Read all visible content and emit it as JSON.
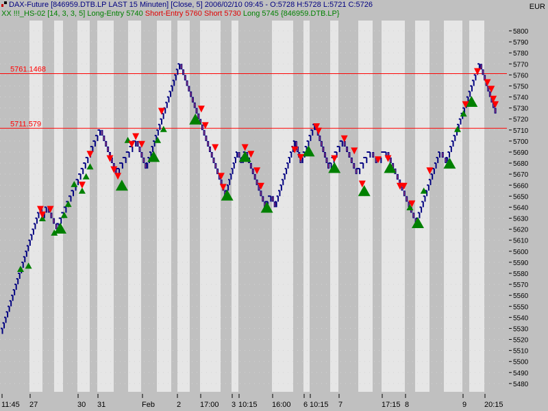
{
  "header": {
    "line1": "DAX-Future [846959.DTB.LP LAST 15 Minuten] [Close, 5] 2006/02/10 09:45 - O:5728 H:5728 L:5721 C:5726",
    "indicator": "XX !!!_HS-02 [14, 3, 3, 5]",
    "long_entry": "Long-Entry 5740",
    "short_entry": "Short-Entry 5760",
    "short": "Short 5730",
    "long": "Long 5745",
    "symbol": "{846959.DTB.LP}",
    "currency": "EUR"
  },
  "chart_data": {
    "type": "line",
    "style": "step (brick size 5)",
    "ylim": [
      5475,
      5805
    ],
    "y_ticks": [
      5480,
      5490,
      5500,
      5510,
      5520,
      5530,
      5540,
      5550,
      5560,
      5570,
      5580,
      5590,
      5600,
      5610,
      5620,
      5630,
      5640,
      5650,
      5660,
      5670,
      5680,
      5690,
      5700,
      5710,
      5720,
      5730,
      5740,
      5750,
      5760,
      5770,
      5780,
      5790,
      5800
    ],
    "x_tick_labels": [
      "11:45",
      "27",
      "30",
      "31",
      "Feb",
      "2",
      "17:00",
      "3",
      "10:15",
      "16:00",
      "6",
      "10:15",
      "7",
      "17:15",
      "8",
      "9",
      "20:15"
    ],
    "hlines": [
      {
        "value": 5761.1468,
        "label": "5761.1468",
        "color": "#ff0000"
      },
      {
        "value": 5711.579,
        "label": "5711.579",
        "color": "#ff0000"
      }
    ],
    "pivots": [
      [
        0,
        5525
      ],
      [
        20,
        5640
      ],
      [
        21,
        5630
      ],
      [
        23,
        5640
      ],
      [
        28,
        5620
      ],
      [
        50,
        5710
      ],
      [
        58,
        5670
      ],
      [
        68,
        5700
      ],
      [
        73,
        5675
      ],
      [
        90,
        5770
      ],
      [
        113,
        5650
      ],
      [
        119,
        5690
      ],
      [
        121,
        5680
      ],
      [
        123,
        5690
      ],
      [
        133,
        5640
      ],
      [
        136,
        5650
      ],
      [
        138,
        5640
      ],
      [
        148,
        5700
      ],
      [
        151,
        5680
      ],
      [
        158,
        5715
      ],
      [
        165,
        5675
      ],
      [
        172,
        5700
      ],
      [
        179,
        5670
      ],
      [
        186,
        5690
      ],
      [
        189,
        5680
      ],
      [
        194,
        5690
      ],
      [
        209,
        5625
      ],
      [
        221,
        5690
      ],
      [
        224,
        5680
      ],
      [
        241,
        5770
      ],
      [
        249,
        5725
      ]
    ],
    "long_signals": [
      [
        30,
        5621,
        "large"
      ],
      [
        61,
        5660,
        "large"
      ],
      [
        77,
        5686,
        "large"
      ],
      [
        98,
        5720,
        "large"
      ],
      [
        114,
        5651,
        "large"
      ],
      [
        123,
        5686,
        "large"
      ],
      [
        134,
        5640,
        "large"
      ],
      [
        155,
        5691,
        "large"
      ],
      [
        168,
        5676,
        "large"
      ],
      [
        183,
        5655,
        "large"
      ],
      [
        196,
        5676,
        "large"
      ],
      [
        210,
        5626,
        "large"
      ],
      [
        226,
        5680,
        "large"
      ],
      [
        237,
        5736,
        "large"
      ],
      [
        10,
        5584,
        "small"
      ],
      [
        14,
        5587,
        "small"
      ],
      [
        21,
        5630,
        "small"
      ],
      [
        27,
        5617,
        "small"
      ],
      [
        32,
        5633,
        "small"
      ],
      [
        34,
        5643,
        "small"
      ],
      [
        37,
        5661,
        "small"
      ],
      [
        41,
        5655,
        "small"
      ],
      [
        43,
        5668,
        "small"
      ],
      [
        45,
        5677,
        "small"
      ],
      [
        64,
        5701,
        "small"
      ],
      [
        79,
        5701,
        "small"
      ],
      [
        82,
        5711,
        "small"
      ],
      [
        206,
        5640,
        "small"
      ],
      [
        213,
        5655,
        "small"
      ],
      [
        230,
        5711,
        "small"
      ],
      [
        233,
        5725,
        "small"
      ]
    ],
    "short_signals": [
      [
        20,
        5638
      ],
      [
        25,
        5638
      ],
      [
        21,
        5633
      ],
      [
        41,
        5660
      ],
      [
        45,
        5688
      ],
      [
        55,
        5684
      ],
      [
        57,
        5674
      ],
      [
        59,
        5668
      ],
      [
        66,
        5697
      ],
      [
        68,
        5704
      ],
      [
        71,
        5697
      ],
      [
        81,
        5727
      ],
      [
        101,
        5729
      ],
      [
        103,
        5714
      ],
      [
        108,
        5694
      ],
      [
        111,
        5668
      ],
      [
        112,
        5658
      ],
      [
        123,
        5694
      ],
      [
        126,
        5688
      ],
      [
        129,
        5673
      ],
      [
        131,
        5659
      ],
      [
        148,
        5692
      ],
      [
        151,
        5685
      ],
      [
        159,
        5713
      ],
      [
        160,
        5709
      ],
      [
        168,
        5684
      ],
      [
        173,
        5702
      ],
      [
        178,
        5691
      ],
      [
        182,
        5661
      ],
      [
        190,
        5683
      ],
      [
        195,
        5684
      ],
      [
        201,
        5659
      ],
      [
        203,
        5659
      ],
      [
        207,
        5643
      ],
      [
        216,
        5673
      ],
      [
        234,
        5733
      ],
      [
        240,
        5763
      ],
      [
        245,
        5753
      ],
      [
        247,
        5747
      ],
      [
        248,
        5738
      ],
      [
        249,
        5733
      ]
    ],
    "colors": {
      "line": "#000080",
      "down_brick": "#c04070",
      "long": "#008000",
      "short": "#ff0000",
      "session_light": "#e6e6e6",
      "session_dark": "#c0c0c0"
    }
  }
}
